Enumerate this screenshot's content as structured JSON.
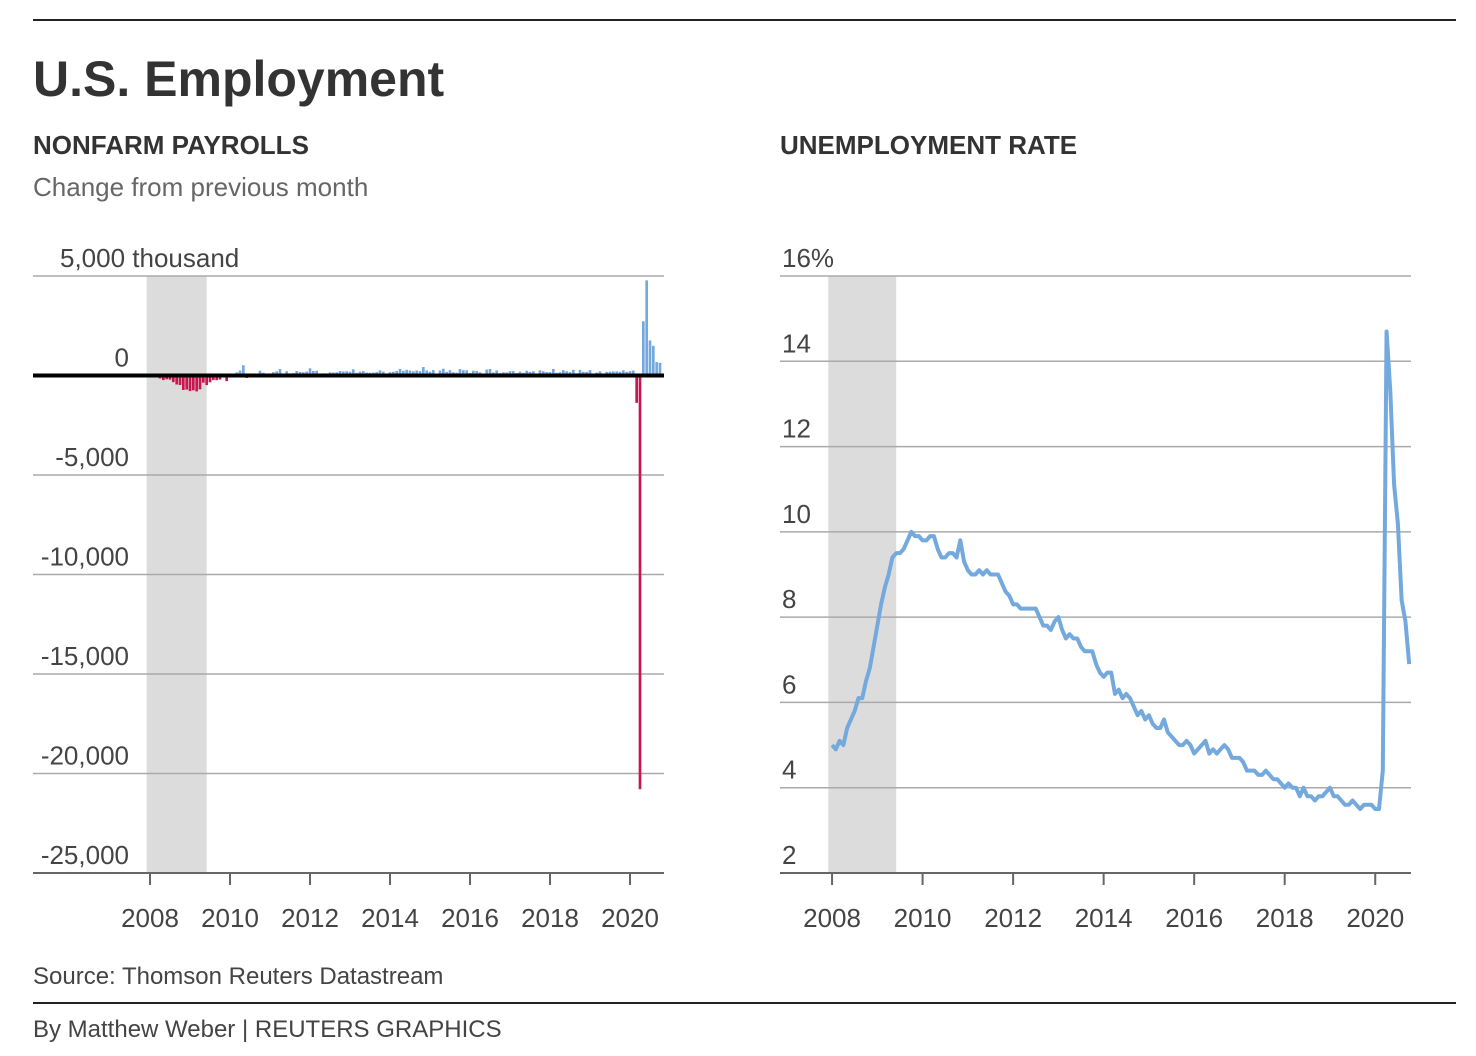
{
  "title": "U.S. Employment",
  "source": "Source: Thomson Reuters Datastream",
  "byline": "By Matthew Weber | REUTERS GRAPHICS",
  "chart_data": [
    {
      "type": "bar",
      "title": "NONFARM PAYROLLS",
      "subtitle": "Change from previous month",
      "color_positive": "#74a9de",
      "color_negative": "#c8174f",
      "grid": true,
      "shaded_range": [
        2007.917,
        2009.417
      ],
      "xlim": [
        2005.075,
        2020.85
      ],
      "xticks": [
        2008,
        2010,
        2012,
        2014,
        2016,
        2018,
        2020
      ],
      "ylim": [
        -25000,
        5000
      ],
      "yticks": [
        {
          "value": 5000,
          "label": "5,000 thousand"
        },
        0,
        {
          "value": -5000,
          "label": "-5,000"
        },
        {
          "value": -10000,
          "label": "-10,000"
        },
        {
          "value": -15000,
          "label": "-15,000"
        },
        {
          "value": -20000,
          "label": "-20,000"
        },
        {
          "value": -25000,
          "label": "-25,000"
        }
      ],
      "x": [
        2008,
        2008.083,
        2008.167,
        2008.25,
        2008.333,
        2008.417,
        2008.5,
        2008.583,
        2008.667,
        2008.75,
        2008.833,
        2008.917,
        2009,
        2009.083,
        2009.167,
        2009.25,
        2009.333,
        2009.417,
        2009.5,
        2009.583,
        2009.667,
        2009.75,
        2009.833,
        2009.917,
        2010,
        2010.083,
        2010.167,
        2010.25,
        2010.333,
        2010.417,
        2010.5,
        2010.583,
        2010.667,
        2010.75,
        2010.833,
        2010.917,
        2011,
        2011.083,
        2011.167,
        2011.25,
        2011.333,
        2011.417,
        2011.5,
        2011.583,
        2011.667,
        2011.75,
        2011.833,
        2011.917,
        2012,
        2012.083,
        2012.167,
        2012.25,
        2012.333,
        2012.417,
        2012.5,
        2012.583,
        2012.667,
        2012.75,
        2012.833,
        2012.917,
        2013,
        2013.083,
        2013.167,
        2013.25,
        2013.333,
        2013.417,
        2013.5,
        2013.583,
        2013.667,
        2013.75,
        2013.833,
        2013.917,
        2014,
        2014.083,
        2014.167,
        2014.25,
        2014.333,
        2014.417,
        2014.5,
        2014.583,
        2014.667,
        2014.75,
        2014.833,
        2014.917,
        2015,
        2015.083,
        2015.167,
        2015.25,
        2015.333,
        2015.417,
        2015.5,
        2015.583,
        2015.667,
        2015.75,
        2015.833,
        2015.917,
        2016,
        2016.083,
        2016.167,
        2016.25,
        2016.333,
        2016.417,
        2016.5,
        2016.583,
        2016.667,
        2016.75,
        2016.833,
        2016.917,
        2017,
        2017.083,
        2017.167,
        2017.25,
        2017.333,
        2017.417,
        2017.5,
        2017.583,
        2017.667,
        2017.75,
        2017.833,
        2017.917,
        2018,
        2018.083,
        2018.167,
        2018.25,
        2018.333,
        2018.417,
        2018.5,
        2018.583,
        2018.667,
        2018.75,
        2018.833,
        2018.917,
        2019,
        2019.083,
        2019.167,
        2019.25,
        2019.333,
        2019.417,
        2019.5,
        2019.583,
        2019.667,
        2019.75,
        2019.833,
        2019.917,
        2020,
        2020.083,
        2020.167,
        2020.25,
        2020.333,
        2020.417,
        2020.5,
        2020.583,
        2020.667,
        2020.75
      ],
      "values": [
        -10,
        -50,
        -33,
        -149,
        -231,
        -193,
        -210,
        -334,
        -452,
        -481,
        -727,
        -706,
        -784,
        -743,
        -800,
        -695,
        -362,
        -482,
        -339,
        -231,
        -235,
        -203,
        -20,
        -283,
        18,
        -50,
        156,
        251,
        516,
        -122,
        -61,
        -42,
        -57,
        241,
        137,
        71,
        70,
        168,
        212,
        322,
        102,
        217,
        106,
        122,
        221,
        183,
        164,
        196,
        360,
        226,
        243,
        96,
        110,
        88,
        160,
        150,
        161,
        225,
        203,
        214,
        190,
        311,
        135,
        192,
        218,
        146,
        140,
        147,
        172,
        258,
        192,
        88,
        166,
        188,
        225,
        330,
        236,
        286,
        249,
        213,
        250,
        221,
        424,
        255,
        190,
        271,
        72,
        251,
        339,
        181,
        268,
        161,
        142,
        325,
        269,
        263,
        126,
        239,
        225,
        163,
        38,
        297,
        326,
        152,
        254,
        124,
        164,
        155,
        216,
        219,
        125,
        191,
        133,
        239,
        182,
        211,
        11,
        263,
        214,
        175,
        174,
        329,
        134,
        164,
        270,
        213,
        173,
        282,
        111,
        277,
        186,
        182,
        269,
        1,
        147,
        210,
        85,
        182,
        194,
        207,
        208,
        185,
        261,
        184,
        214,
        251,
        -1373,
        -20787,
        2725,
        4781,
        1761,
        1493,
        672,
        638
      ]
    },
    {
      "type": "line",
      "title": "UNEMPLOYMENT RATE",
      "color": "#74a9de",
      "grid": true,
      "shaded_range": [
        2007.917,
        2009.417
      ],
      "xlim": [
        2006.85,
        2020.79
      ],
      "xticks": [
        2008,
        2010,
        2012,
        2014,
        2016,
        2018,
        2020
      ],
      "ylim": [
        2,
        16
      ],
      "yticks": [
        {
          "value": 16,
          "label": "16%"
        },
        14,
        12,
        10,
        8,
        6,
        4,
        2
      ],
      "x": [
        2008,
        2008.083,
        2008.167,
        2008.25,
        2008.333,
        2008.417,
        2008.5,
        2008.583,
        2008.667,
        2008.75,
        2008.833,
        2008.917,
        2009,
        2009.083,
        2009.167,
        2009.25,
        2009.333,
        2009.417,
        2009.5,
        2009.583,
        2009.667,
        2009.75,
        2009.833,
        2009.917,
        2010,
        2010.083,
        2010.167,
        2010.25,
        2010.333,
        2010.417,
        2010.5,
        2010.583,
        2010.667,
        2010.75,
        2010.833,
        2010.917,
        2011,
        2011.083,
        2011.167,
        2011.25,
        2011.333,
        2011.417,
        2011.5,
        2011.583,
        2011.667,
        2011.75,
        2011.833,
        2011.917,
        2012,
        2012.083,
        2012.167,
        2012.25,
        2012.333,
        2012.417,
        2012.5,
        2012.583,
        2012.667,
        2012.75,
        2012.833,
        2012.917,
        2013,
        2013.083,
        2013.167,
        2013.25,
        2013.333,
        2013.417,
        2013.5,
        2013.583,
        2013.667,
        2013.75,
        2013.833,
        2013.917,
        2014,
        2014.083,
        2014.167,
        2014.25,
        2014.333,
        2014.417,
        2014.5,
        2014.583,
        2014.667,
        2014.75,
        2014.833,
        2014.917,
        2015,
        2015.083,
        2015.167,
        2015.25,
        2015.333,
        2015.417,
        2015.5,
        2015.583,
        2015.667,
        2015.75,
        2015.833,
        2015.917,
        2016,
        2016.083,
        2016.167,
        2016.25,
        2016.333,
        2016.417,
        2016.5,
        2016.583,
        2016.667,
        2016.75,
        2016.833,
        2016.917,
        2017,
        2017.083,
        2017.167,
        2017.25,
        2017.333,
        2017.417,
        2017.5,
        2017.583,
        2017.667,
        2017.75,
        2017.833,
        2017.917,
        2018,
        2018.083,
        2018.167,
        2018.25,
        2018.333,
        2018.417,
        2018.5,
        2018.583,
        2018.667,
        2018.75,
        2018.833,
        2018.917,
        2019,
        2019.083,
        2019.167,
        2019.25,
        2019.333,
        2019.417,
        2019.5,
        2019.583,
        2019.667,
        2019.75,
        2019.833,
        2019.917,
        2020,
        2020.083,
        2020.167,
        2020.25,
        2020.333,
        2020.417,
        2020.5,
        2020.583,
        2020.667,
        2020.75
      ],
      "values": [
        5.0,
        4.9,
        5.1,
        5.0,
        5.4,
        5.6,
        5.8,
        6.1,
        6.1,
        6.5,
        6.8,
        7.3,
        7.8,
        8.3,
        8.7,
        9.0,
        9.4,
        9.5,
        9.5,
        9.6,
        9.8,
        10.0,
        9.9,
        9.9,
        9.8,
        9.8,
        9.9,
        9.9,
        9.6,
        9.4,
        9.4,
        9.5,
        9.5,
        9.4,
        9.8,
        9.3,
        9.1,
        9.0,
        9.0,
        9.1,
        9.0,
        9.1,
        9.0,
        9.0,
        9.0,
        8.8,
        8.6,
        8.5,
        8.3,
        8.3,
        8.2,
        8.2,
        8.2,
        8.2,
        8.2,
        8.0,
        7.8,
        7.8,
        7.7,
        7.9,
        8.0,
        7.7,
        7.5,
        7.6,
        7.5,
        7.5,
        7.3,
        7.2,
        7.2,
        7.2,
        6.9,
        6.7,
        6.6,
        6.7,
        6.7,
        6.2,
        6.3,
        6.1,
        6.2,
        6.1,
        5.9,
        5.7,
        5.8,
        5.6,
        5.7,
        5.5,
        5.4,
        5.4,
        5.6,
        5.3,
        5.2,
        5.1,
        5.0,
        5.0,
        5.1,
        5.0,
        4.8,
        4.9,
        5.0,
        5.1,
        4.8,
        4.9,
        4.8,
        4.9,
        5.0,
        4.9,
        4.7,
        4.7,
        4.7,
        4.6,
        4.4,
        4.4,
        4.4,
        4.3,
        4.3,
        4.4,
        4.3,
        4.2,
        4.2,
        4.1,
        4.0,
        4.1,
        4.0,
        4.0,
        3.8,
        4.0,
        3.8,
        3.8,
        3.7,
        3.8,
        3.8,
        3.9,
        4.0,
        3.8,
        3.8,
        3.7,
        3.6,
        3.6,
        3.7,
        3.6,
        3.5,
        3.6,
        3.6,
        3.6,
        3.5,
        3.5,
        4.4,
        14.7,
        13.3,
        11.1,
        10.2,
        8.4,
        7.9,
        6.9
      ]
    }
  ]
}
